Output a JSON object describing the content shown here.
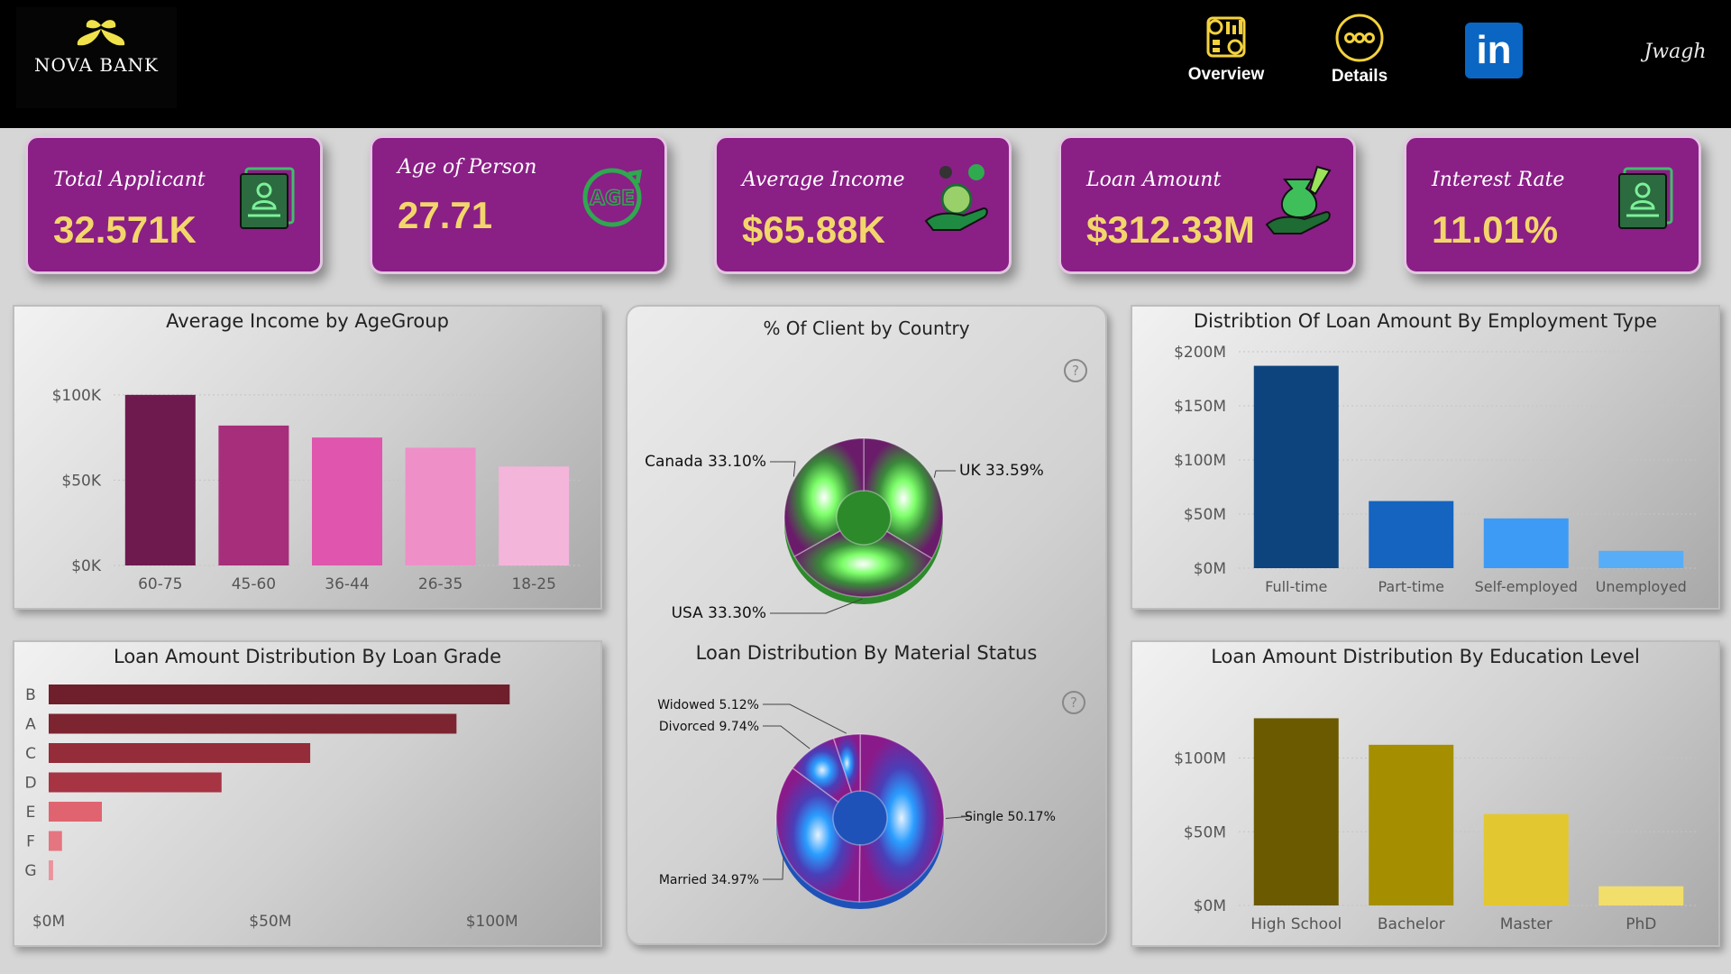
{
  "brand": {
    "name": "NOVA BANK",
    "signature": "Jwagh"
  },
  "nav": {
    "overview": "Overview",
    "details": "Details",
    "linkedin": "in"
  },
  "kpis": [
    {
      "title": "Total Applicant",
      "value": "32.571K"
    },
    {
      "title": "Age of Person",
      "value": "27.71"
    },
    {
      "title": "Average Income",
      "value": "$65.88K"
    },
    {
      "title": "Loan Amount",
      "value": "$312.33M"
    },
    {
      "title": "Interest Rate",
      "value": "11.01%"
    }
  ],
  "kpi_icon_text": {
    "age": "AGE"
  },
  "charts": {
    "income_by_age": {
      "title": "Average Income by AgeGroup"
    },
    "client_by_country": {
      "title": "% Of Client by Country"
    },
    "loan_by_employment": {
      "title": "Distribtion Of Loan Amount By Employment Type"
    },
    "loan_by_grade": {
      "title": "Loan Amount Distribution By Loan Grade"
    },
    "loan_by_marital": {
      "title": "Loan Distribution By Material Status"
    },
    "loan_by_education": {
      "title": "Loan Amount Distribution By Education Level"
    }
  },
  "chart_data": [
    {
      "id": "income_by_age",
      "type": "bar",
      "title": "Average Income by AgeGroup",
      "categories": [
        "60-75",
        "45-60",
        "36-44",
        "26-35",
        "18-25"
      ],
      "values": [
        100,
        82,
        75,
        69,
        58
      ],
      "unit": "$K",
      "yticks": [
        "$0K",
        "$50K",
        "$100K"
      ],
      "ylim": [
        0,
        120
      ],
      "colors": [
        "#6e1a4f",
        "#a62e7a",
        "#e055ad",
        "#ee8fc8",
        "#f4b5db"
      ]
    },
    {
      "id": "client_by_country",
      "type": "pie",
      "title": "% Of Client by Country",
      "labels": [
        "UK",
        "USA",
        "Canada"
      ],
      "values": [
        33.59,
        33.3,
        33.1
      ],
      "label_text": [
        "UK 33.59%",
        "USA 33.30%",
        "Canada 33.10%"
      ]
    },
    {
      "id": "loan_by_employment",
      "type": "bar",
      "title": "Distribtion Of Loan Amount By Employment Type",
      "categories": [
        "Full-time",
        "Part-time",
        "Self-employed",
        "Unemployed"
      ],
      "values": [
        187,
        62,
        46,
        16
      ],
      "unit": "$M",
      "yticks": [
        "$0M",
        "$50M",
        "$100M",
        "$150M",
        "$200M"
      ],
      "ylim": [
        0,
        200
      ],
      "colors": [
        "#0e447e",
        "#1464c0",
        "#3d9bf5",
        "#58adf7"
      ]
    },
    {
      "id": "loan_by_grade",
      "type": "bar",
      "orientation": "horizontal",
      "title": "Loan Amount Distribution By Loan Grade",
      "categories": [
        "B",
        "A",
        "C",
        "D",
        "E",
        "F",
        "G"
      ],
      "values": [
        104,
        92,
        59,
        39,
        12,
        3,
        1
      ],
      "unit": "$M",
      "xticks": [
        "$0M",
        "$50M",
        "$100M"
      ],
      "xlim": [
        0,
        120
      ],
      "colors": [
        "#6e1f2b",
        "#7d2431",
        "#952c3a",
        "#a63442",
        "#e06470",
        "#e57580",
        "#ec939c"
      ]
    },
    {
      "id": "loan_by_marital",
      "type": "pie",
      "title": "Loan Distribution By Material Status",
      "labels": [
        "Single",
        "Married",
        "Divorced",
        "Widowed"
      ],
      "values": [
        50.17,
        34.97,
        9.74,
        5.12
      ],
      "label_text": [
        "Single 50.17%",
        "Married 34.97%",
        "Divorced 9.74%",
        "Widowed 5.12%"
      ]
    },
    {
      "id": "loan_by_education",
      "type": "bar",
      "title": "Loan Amount Distribution By Education Level",
      "categories": [
        "High School",
        "Bachelor",
        "Master",
        "PhD"
      ],
      "values": [
        127,
        109,
        62,
        13
      ],
      "unit": "$M",
      "yticks": [
        "$0M",
        "$50M",
        "$100M"
      ],
      "ylim": [
        0,
        145
      ],
      "colors": [
        "#6b5a00",
        "#a58f00",
        "#e3c730",
        "#f2de6a"
      ]
    }
  ]
}
